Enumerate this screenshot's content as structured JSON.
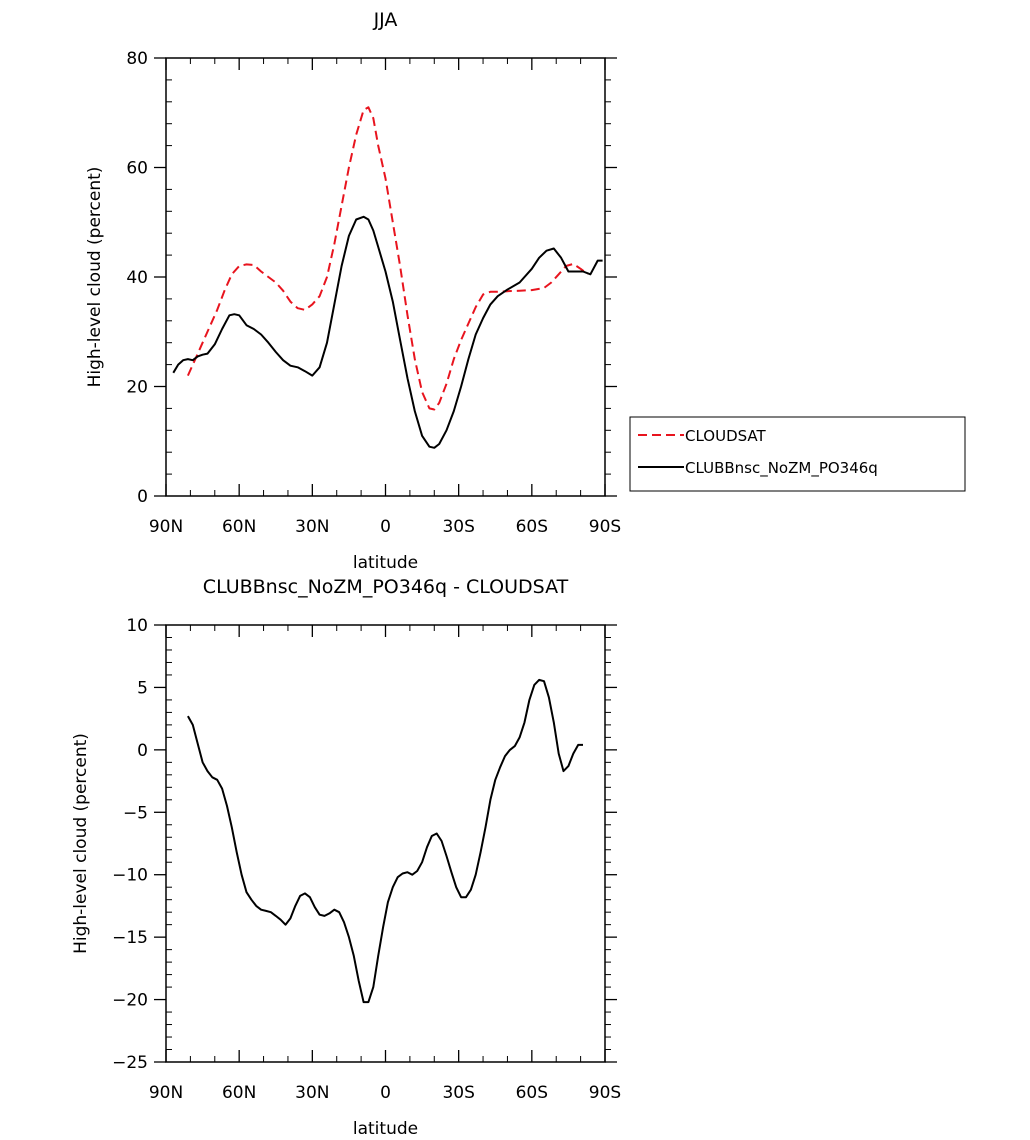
{
  "colors": {
    "cloudsat": "#e8141e",
    "model": "#000000"
  },
  "chart_data": [
    {
      "type": "line",
      "title": "JJA",
      "xlabel": "latitude",
      "ylabel": "High-level cloud (percent)",
      "xlim": [
        90,
        -90
      ],
      "ylim": [
        0,
        80
      ],
      "x_ticks": [
        90,
        60,
        30,
        0,
        -30,
        -60,
        -90
      ],
      "x_tick_labels": [
        "90N",
        "60N",
        "30N",
        "0",
        "30S",
        "60S",
        "90S"
      ],
      "y_ticks": [
        0,
        20,
        40,
        60,
        80
      ],
      "y_tick_labels": [
        "0",
        "20",
        "40",
        "60",
        "80"
      ],
      "legend": {
        "position": "right",
        "entries": [
          "CLOUDSAT",
          "CLUBBnsc_NoZM_PO346q"
        ]
      },
      "series": [
        {
          "name": "CLOUDSAT",
          "style": "dashed",
          "color": "#e8141e",
          "x": [
            81,
            78,
            75,
            72,
            69,
            66,
            63,
            60,
            57,
            54,
            51,
            48,
            45,
            42,
            39,
            36,
            33,
            30,
            27,
            24,
            21,
            18,
            15,
            12,
            9,
            7,
            5,
            3,
            0,
            -3,
            -6,
            -9,
            -12,
            -15,
            -18,
            -20,
            -22,
            -25,
            -28,
            -31,
            -34,
            -37,
            -40,
            -43,
            -46,
            -50,
            -55,
            -60,
            -65,
            -68,
            -71,
            -74,
            -77,
            -80,
            -83
          ],
          "y": [
            22,
            25,
            28,
            31,
            34,
            37.5,
            40.5,
            42,
            42.3,
            42.2,
            41,
            40,
            39,
            37.5,
            35.5,
            34.3,
            34,
            35,
            36.5,
            40,
            46,
            53,
            60,
            66,
            70.5,
            71,
            69,
            64,
            58,
            50,
            42,
            33,
            25,
            19,
            16,
            15.8,
            17,
            20.5,
            25,
            28.5,
            31.5,
            34.5,
            36.8,
            37.3,
            37.3,
            37.4,
            37.5,
            37.6,
            38,
            39,
            40.5,
            42,
            42.4,
            41.5,
            40.5
          ]
        },
        {
          "name": "CLUBBnsc_NoZM_PO346q",
          "style": "solid",
          "color": "#000000",
          "x": [
            87,
            85,
            83,
            81,
            79,
            77,
            75,
            73,
            70,
            67,
            64,
            62,
            60,
            57,
            54,
            51,
            48,
            45,
            42,
            39,
            36,
            33,
            30,
            27,
            24,
            21,
            18,
            15,
            12,
            9,
            7,
            5,
            3,
            0,
            -3,
            -6,
            -9,
            -12,
            -15,
            -18,
            -20,
            -22,
            -25,
            -28,
            -31,
            -34,
            -37,
            -40,
            -43,
            -46,
            -50,
            -55,
            -60,
            -63,
            -66,
            -69,
            -72,
            -75,
            -78,
            -81,
            -84,
            -87,
            -89
          ],
          "y": [
            22.5,
            24,
            24.8,
            25,
            24.8,
            25.5,
            25.8,
            26,
            27.7,
            30.5,
            33,
            33.2,
            33,
            31.2,
            30.5,
            29.5,
            28,
            26.3,
            24.8,
            23.8,
            23.5,
            22.8,
            22,
            23.5,
            28,
            35,
            42,
            47.5,
            50.5,
            51,
            50.5,
            48.5,
            45.5,
            41,
            35.5,
            28.5,
            21.5,
            15.5,
            11,
            9,
            8.8,
            9.5,
            12,
            15.5,
            20,
            25,
            29.5,
            32.5,
            35,
            36.5,
            37.7,
            39,
            41.5,
            43.5,
            44.8,
            45.2,
            43.5,
            41,
            41,
            41,
            40.5,
            43,
            43
          ]
        }
      ]
    },
    {
      "type": "line",
      "title": "CLUBBnsc_NoZM_PO346q - CLOUDSAT",
      "xlabel": "latitude",
      "ylabel": "High-level cloud (percent)",
      "xlim": [
        90,
        -90
      ],
      "ylim": [
        -25,
        10
      ],
      "x_ticks": [
        90,
        60,
        30,
        0,
        -30,
        -60,
        -90
      ],
      "x_tick_labels": [
        "90N",
        "60N",
        "30N",
        "0",
        "30S",
        "60S",
        "90S"
      ],
      "y_ticks": [
        -25,
        -20,
        -15,
        -10,
        -5,
        0,
        5,
        10
      ],
      "y_tick_labels": [
        "−25",
        "−20",
        "−15",
        "−10",
        "−5",
        "0",
        "5",
        "10"
      ],
      "series": [
        {
          "style": "solid",
          "color": "#000000",
          "x": [
            81,
            79,
            77,
            75,
            73,
            71,
            69,
            67,
            65,
            63,
            61,
            59,
            57,
            55,
            53,
            51,
            49,
            47,
            45,
            43,
            41,
            39,
            37,
            35,
            33,
            31,
            29,
            27,
            25,
            23,
            21,
            19,
            17,
            15,
            13,
            11,
            9,
            7,
            5,
            3,
            1,
            -1,
            -3,
            -5,
            -7,
            -9,
            -11,
            -13,
            -15,
            -17,
            -19,
            -21,
            -23,
            -25,
            -27,
            -29,
            -31,
            -33,
            -35,
            -37,
            -39,
            -41,
            -43,
            -45,
            -47,
            -49,
            -51,
            -53,
            -55,
            -57,
            -59,
            -61,
            -63,
            -65,
            -67,
            -69,
            -71,
            -73,
            -75,
            -77,
            -79,
            -81
          ],
          "y": [
            2.7,
            2,
            0.5,
            -1,
            -1.7,
            -2.2,
            -2.4,
            -3.1,
            -4.5,
            -6.2,
            -8.2,
            -10,
            -11.4,
            -12,
            -12.5,
            -12.8,
            -12.9,
            -13,
            -13.3,
            -13.6,
            -14,
            -13.5,
            -12.5,
            -11.7,
            -11.5,
            -11.8,
            -12.6,
            -13.2,
            -13.3,
            -13.1,
            -12.8,
            -13,
            -13.8,
            -15,
            -16.5,
            -18.5,
            -20.2,
            -20.2,
            -19,
            -16.5,
            -14.2,
            -12.2,
            -11,
            -10.2,
            -9.9,
            -9.8,
            -10,
            -9.7,
            -9,
            -7.8,
            -6.9,
            -6.7,
            -7.3,
            -8.5,
            -9.8,
            -11,
            -11.8,
            -11.8,
            -11.2,
            -10,
            -8.2,
            -6.2,
            -4,
            -2.4,
            -1.4,
            -0.5,
            0,
            0.3,
            1,
            2.2,
            4,
            5.2,
            5.6,
            5.5,
            4.2,
            2.2,
            -0.3,
            -1.7,
            -1.3,
            -0.3,
            0.4,
            0.4
          ]
        }
      ]
    }
  ]
}
